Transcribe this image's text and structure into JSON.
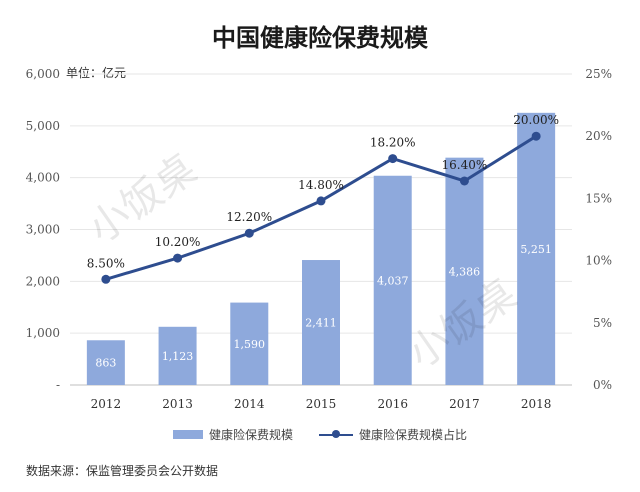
{
  "title": "中国健康险保费规模",
  "unit_label": "单位：亿元",
  "source_note": "数据来源：保监管理委员会公开数据",
  "watermark": "小饭桌",
  "colors": {
    "bar": "#8ea9dc",
    "line": "#2e4d8f",
    "grid": "#e6e6e6",
    "axis_text": "#555555",
    "bar_label": "#ffffff"
  },
  "chart_data": {
    "type": "bar",
    "categories": [
      "2012",
      "2013",
      "2014",
      "2015",
      "2016",
      "2017",
      "2018"
    ],
    "series": [
      {
        "name": "健康险保费规模",
        "type": "bar",
        "axis": "left",
        "values": [
          863,
          1123,
          1590,
          2411,
          4037,
          4386,
          5251
        ],
        "labels": [
          "863",
          "1,123",
          "1,590",
          "2,411",
          "4,037",
          "4,386",
          "5,251"
        ]
      },
      {
        "name": "健康险保费规模占比",
        "type": "line",
        "axis": "right",
        "values": [
          8.5,
          10.2,
          12.2,
          14.8,
          18.2,
          16.4,
          20.0
        ],
        "labels": [
          "8.50%",
          "10.20%",
          "12.20%",
          "14.80%",
          "18.20%",
          "16.40%",
          "20.00%"
        ]
      }
    ],
    "y_left": {
      "min": 0,
      "max": 6000,
      "ticks": [
        "-",
        "1,000",
        "2,000",
        "3,000",
        "4,000",
        "5,000",
        "6,000"
      ]
    },
    "y_right": {
      "min": 0,
      "max": 25,
      "ticks": [
        "0%",
        "5%",
        "10%",
        "15%",
        "20%",
        "25%"
      ]
    },
    "grid": true,
    "legend_position": "bottom"
  }
}
